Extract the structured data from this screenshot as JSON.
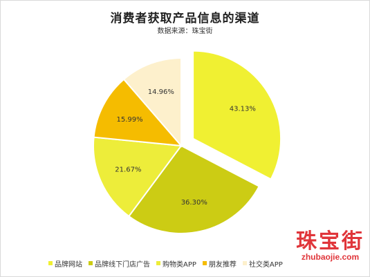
{
  "chart_data": {
    "type": "pie",
    "title": "消费者获取产品信息的渠道",
    "subtitle": "数据来源：珠宝街",
    "legend_position": "bottom",
    "slices": [
      {
        "name": "品牌网站",
        "value": 43.13,
        "label": "43.13%",
        "color": "#f0f032",
        "exploded": true
      },
      {
        "name": "品牌线下门店广告",
        "value": 36.3,
        "label": "36.30%",
        "color": "#cccc14",
        "exploded": false
      },
      {
        "name": "购物类APP",
        "value": 21.67,
        "label": "21.67%",
        "color": "#eded3a",
        "exploded": false
      },
      {
        "name": "朋友推荐",
        "value": 15.99,
        "label": "15.99%",
        "color": "#f5bc00",
        "exploded": false
      },
      {
        "name": "社交类APP",
        "value": 14.96,
        "label": "14.96%",
        "color": "#fdf0cc",
        "exploded": false
      }
    ]
  },
  "watermark": {
    "text_cn": "珠宝街",
    "text_en": "zhubaojie.com"
  }
}
